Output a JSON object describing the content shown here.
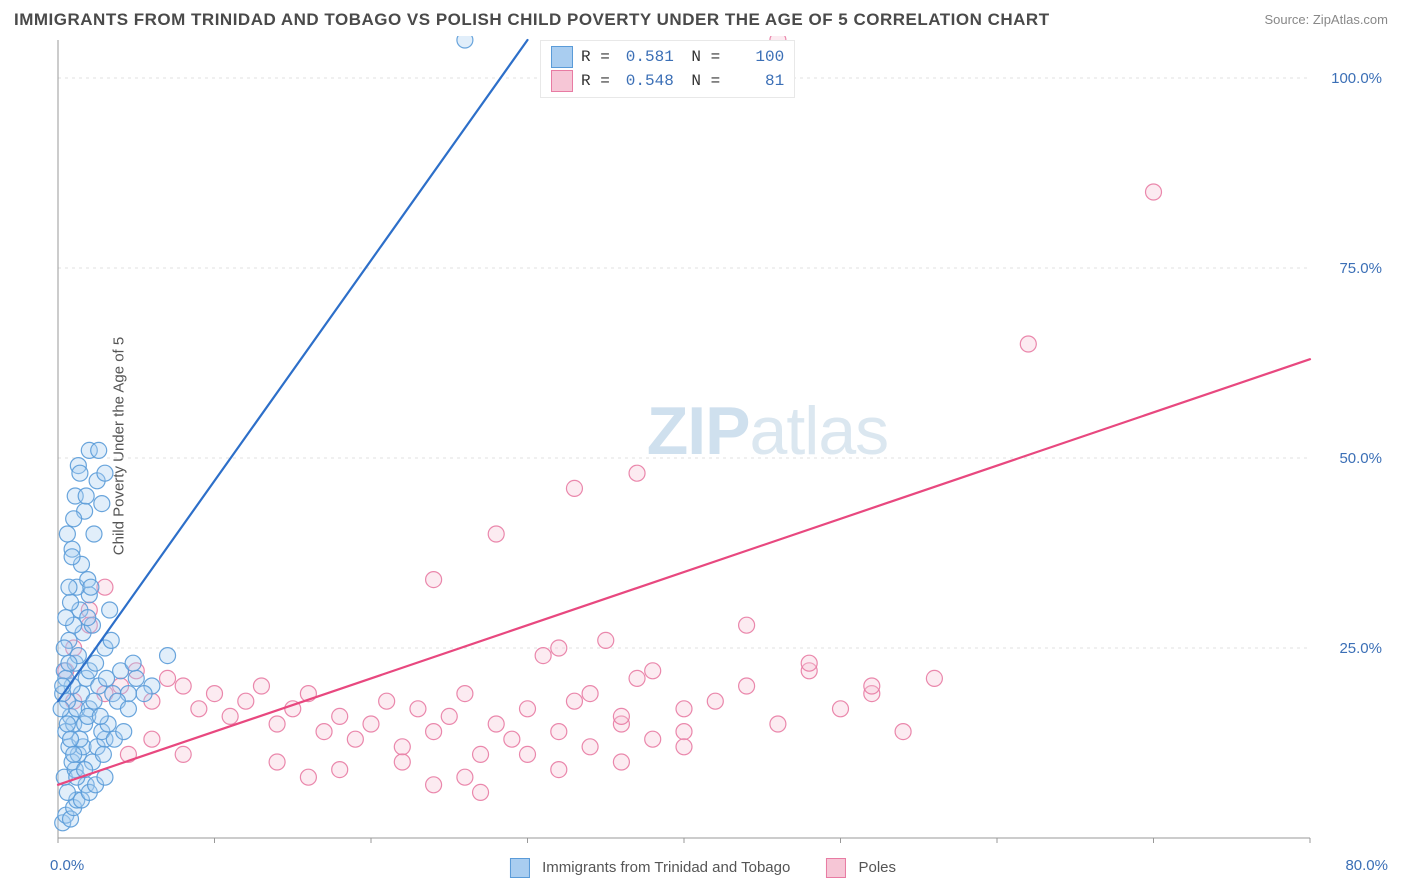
{
  "title": "IMMIGRANTS FROM TRINIDAD AND TOBAGO VS POLISH CHILD POVERTY UNDER THE AGE OF 5 CORRELATION CHART",
  "source_label": "Source: ",
  "source_name": "ZipAtlas.com",
  "y_axis_label": "Child Poverty Under the Age of 5",
  "x_origin_label": "0.0%",
  "x_max_label": "80.0%",
  "watermark_prefix": "ZIP",
  "watermark_suffix": "atlas",
  "chart": {
    "type": "scatter",
    "background_color": "#ffffff",
    "grid_color": "#e0e0e0",
    "axis_color": "#999999",
    "tick_label_color": "#3b6fb6",
    "xlim": [
      0,
      80
    ],
    "ylim": [
      0,
      105
    ],
    "x_ticks": [
      0,
      10,
      20,
      30,
      40,
      50,
      60,
      70,
      80
    ],
    "y_ticks": [
      25,
      50,
      75,
      100
    ],
    "y_tick_labels": [
      "25.0%",
      "50.0%",
      "75.0%",
      "100.0%"
    ],
    "marker_radius": 8,
    "marker_fill_opacity": 0.35,
    "marker_stroke_opacity": 0.9,
    "marker_stroke_width": 1.2,
    "line_width": 2.2,
    "series": [
      {
        "id": "trinidad",
        "label": "Immigrants from Trinidad and Tobago",
        "color_fill": "#a9cdf0",
        "color_stroke": "#5a9bd8",
        "line_color": "#2d6fc9",
        "r_value": "0.581",
        "n_value": "100",
        "regression": {
          "x1": 0,
          "y1": 18,
          "x2": 30,
          "y2": 105
        },
        "points": [
          [
            0.3,
            2
          ],
          [
            0.5,
            3
          ],
          [
            0.8,
            2.5
          ],
          [
            1,
            4
          ],
          [
            1.2,
            5
          ],
          [
            0.6,
            6
          ],
          [
            1.5,
            5
          ],
          [
            1.8,
            7
          ],
          [
            0.4,
            8
          ],
          [
            1.1,
            9
          ],
          [
            2,
            6
          ],
          [
            0.9,
            10
          ],
          [
            1.3,
            11
          ],
          [
            1.6,
            12
          ],
          [
            2.2,
            10
          ],
          [
            0.7,
            12
          ],
          [
            1.4,
            13
          ],
          [
            2.5,
            12
          ],
          [
            3,
            13
          ],
          [
            0.5,
            14
          ],
          [
            1,
            15
          ],
          [
            1.7,
            15
          ],
          [
            2.8,
            14
          ],
          [
            0.8,
            16
          ],
          [
            1.2,
            17
          ],
          [
            2,
            17
          ],
          [
            3.2,
            15
          ],
          [
            0.6,
            18
          ],
          [
            1.5,
            19
          ],
          [
            2.3,
            18
          ],
          [
            0.9,
            20
          ],
          [
            1.8,
            21
          ],
          [
            2.6,
            20
          ],
          [
            3.5,
            19
          ],
          [
            4.5,
            19
          ],
          [
            0.4,
            22
          ],
          [
            1.1,
            23
          ],
          [
            2,
            22
          ],
          [
            7,
            24
          ],
          [
            1.3,
            24
          ],
          [
            2.4,
            23
          ],
          [
            0.7,
            26
          ],
          [
            1.6,
            27
          ],
          [
            3,
            25
          ],
          [
            1,
            28
          ],
          [
            2.2,
            28
          ],
          [
            1.4,
            30
          ],
          [
            0.8,
            31
          ],
          [
            2,
            32
          ],
          [
            1.2,
            33
          ],
          [
            1.9,
            34
          ],
          [
            1.5,
            36
          ],
          [
            0.9,
            38
          ],
          [
            2.3,
            40
          ],
          [
            1.7,
            43
          ],
          [
            1.1,
            45
          ],
          [
            2.5,
            47
          ],
          [
            1.3,
            49
          ],
          [
            2,
            51
          ],
          [
            3,
            48
          ],
          [
            1.8,
            45
          ],
          [
            2.8,
            44
          ],
          [
            1,
            42
          ],
          [
            0.6,
            40
          ],
          [
            2.1,
            33
          ],
          [
            3.3,
            30
          ],
          [
            4,
            22
          ],
          [
            5,
            21
          ],
          [
            6,
            20
          ],
          [
            3.8,
            18
          ],
          [
            4.5,
            17
          ],
          [
            5.5,
            19
          ],
          [
            1.9,
            16
          ],
          [
            2.7,
            16
          ],
          [
            3.1,
            21
          ],
          [
            0.3,
            19
          ],
          [
            0.5,
            21
          ],
          [
            0.7,
            23
          ],
          [
            0.4,
            25
          ],
          [
            0.6,
            15
          ],
          [
            0.8,
            13
          ],
          [
            1,
            11
          ],
          [
            1.2,
            8
          ],
          [
            2.4,
            7
          ],
          [
            3,
            8
          ],
          [
            1.7,
            9
          ],
          [
            2.9,
            11
          ],
          [
            3.6,
            13
          ],
          [
            4.2,
            14
          ],
          [
            0.2,
            17
          ],
          [
            0.3,
            20
          ],
          [
            0.5,
            29
          ],
          [
            0.7,
            33
          ],
          [
            0.9,
            37
          ],
          [
            26,
            105
          ],
          [
            1.4,
            48
          ],
          [
            2.6,
            51
          ],
          [
            1.9,
            29
          ],
          [
            3.4,
            26
          ],
          [
            4.8,
            23
          ]
        ]
      },
      {
        "id": "poles",
        "label": "Poles",
        "color_fill": "#f6c6d6",
        "color_stroke": "#e87ba3",
        "line_color": "#e8487f",
        "r_value": "0.548",
        "n_value": "81",
        "regression": {
          "x1": 0,
          "y1": 7,
          "x2": 80,
          "y2": 63
        },
        "points": [
          [
            1,
            18
          ],
          [
            2,
            28
          ],
          [
            3,
            19
          ],
          [
            4,
            20
          ],
          [
            5,
            22
          ],
          [
            6,
            18
          ],
          [
            7,
            21
          ],
          [
            8,
            20
          ],
          [
            9,
            17
          ],
          [
            10,
            19
          ],
          [
            11,
            16
          ],
          [
            12,
            18
          ],
          [
            13,
            20
          ],
          [
            14,
            15
          ],
          [
            15,
            17
          ],
          [
            16,
            19
          ],
          [
            17,
            14
          ],
          [
            18,
            16
          ],
          [
            19,
            13
          ],
          [
            20,
            15
          ],
          [
            21,
            18
          ],
          [
            22,
            12
          ],
          [
            23,
            17
          ],
          [
            24,
            14
          ],
          [
            25,
            16
          ],
          [
            26,
            19
          ],
          [
            27,
            11
          ],
          [
            28,
            15
          ],
          [
            29,
            13
          ],
          [
            30,
            17
          ],
          [
            31,
            24
          ],
          [
            32,
            14
          ],
          [
            33,
            18
          ],
          [
            34,
            12
          ],
          [
            35,
            26
          ],
          [
            36,
            15
          ],
          [
            37,
            21
          ],
          [
            38,
            13
          ],
          [
            24,
            34
          ],
          [
            40,
            17
          ],
          [
            28,
            40
          ],
          [
            32,
            25
          ],
          [
            34,
            19
          ],
          [
            36,
            16
          ],
          [
            38,
            22
          ],
          [
            40,
            14
          ],
          [
            42,
            18
          ],
          [
            33,
            46
          ],
          [
            44,
            20
          ],
          [
            46,
            15
          ],
          [
            48,
            22
          ],
          [
            37,
            48
          ],
          [
            50,
            17
          ],
          [
            18,
            9
          ],
          [
            52,
            19
          ],
          [
            54,
            14
          ],
          [
            27,
            6
          ],
          [
            56,
            21
          ],
          [
            44,
            28
          ],
          [
            48,
            23
          ],
          [
            24,
            7
          ],
          [
            52,
            20
          ],
          [
            30,
            11
          ],
          [
            32,
            9
          ],
          [
            36,
            10
          ],
          [
            40,
            12
          ],
          [
            22,
            10
          ],
          [
            26,
            8
          ],
          [
            14,
            10
          ],
          [
            16,
            8
          ],
          [
            46,
            105
          ],
          [
            47,
            106
          ],
          [
            70,
            85
          ],
          [
            62,
            65
          ],
          [
            1,
            25
          ],
          [
            0.5,
            22
          ],
          [
            2,
            30
          ],
          [
            3,
            33
          ],
          [
            4.5,
            11
          ],
          [
            6,
            13
          ],
          [
            8,
            11
          ]
        ]
      }
    ]
  },
  "legend": {
    "items": [
      {
        "series": "trinidad"
      },
      {
        "series": "poles"
      }
    ]
  }
}
